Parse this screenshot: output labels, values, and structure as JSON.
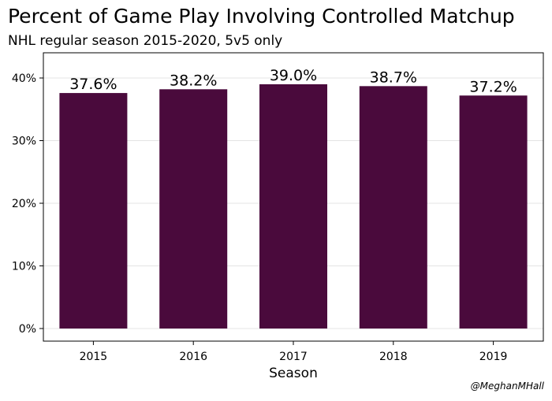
{
  "chart_data": {
    "type": "bar",
    "title": "Percent of Game Play Involving Controlled Matchup",
    "subtitle": "NHL regular season 2015-2020, 5v5 only",
    "xlabel": "Season",
    "ylabel": "",
    "categories": [
      "2015",
      "2016",
      "2017",
      "2018",
      "2019"
    ],
    "values": [
      37.6,
      38.2,
      39.0,
      38.7,
      37.2
    ],
    "data_labels": [
      "37.6%",
      "38.2%",
      "39.0%",
      "38.7%",
      "37.2%"
    ],
    "ylim": [
      0,
      42
    ],
    "yticks": [
      0,
      10,
      20,
      30,
      40
    ],
    "ytick_labels": [
      "0%",
      "10%",
      "20%",
      "30%",
      "40%"
    ],
    "bar_color": "#4a0a3c",
    "grid": true,
    "legend": "none"
  },
  "credit": "@MeghanMHall"
}
